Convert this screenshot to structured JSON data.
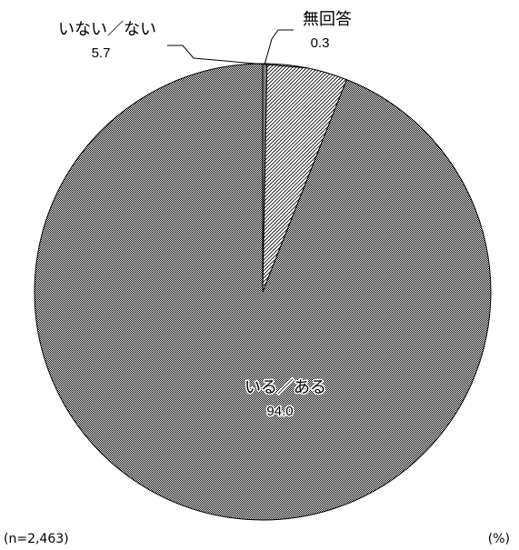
{
  "chart_data": {
    "type": "pie",
    "categories": [
      "無回答",
      "いない／ない",
      "いる／ある"
    ],
    "values": [
      0.3,
      5.7,
      94.0
    ],
    "display_values": [
      "0.3",
      "5.7",
      "94.0"
    ],
    "title": "",
    "sample_size_label": "(n=2,463)",
    "unit_label": "(%)",
    "slice_patterns": [
      "dense-dots",
      "diagonal-hatch",
      "dense-dots"
    ],
    "colors": {
      "stroke": "#000000",
      "background": "#ffffff",
      "pattern_ink": "#000000"
    }
  }
}
